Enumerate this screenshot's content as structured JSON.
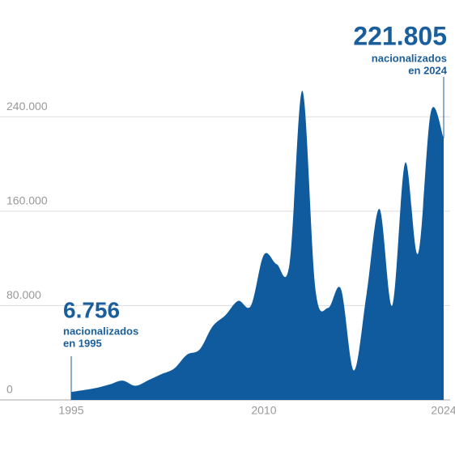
{
  "chart_data": {
    "type": "area",
    "color": "#0f5b9e",
    "x": [
      1995,
      1996,
      1997,
      1998,
      1999,
      2000,
      2001,
      2002,
      2003,
      2004,
      2005,
      2006,
      2007,
      2008,
      2009,
      2010,
      2011,
      2012,
      2013,
      2014,
      2015,
      2016,
      2017,
      2018,
      2019,
      2020,
      2021,
      2022,
      2023,
      2024
    ],
    "values": [
      6756,
      8400,
      10300,
      13200,
      16400,
      12000,
      16700,
      21800,
      26500,
      38300,
      42800,
      62300,
      71800,
      84000,
      80000,
      123000,
      115000,
      115500,
      262000,
      95000,
      78000,
      94000,
      25000,
      90000,
      162000,
      80000,
      201000,
      124000,
      244000,
      221805
    ],
    "xlim": [
      1995,
      2024
    ],
    "ylim": [
      0,
      280000
    ],
    "yticks": [
      0,
      {
        "value": 80000,
        "label": "80.000"
      },
      {
        "value": 160000,
        "label": "160.000"
      },
      {
        "value": 240000,
        "label": "240.000"
      }
    ],
    "xticks": [
      1995,
      2010,
      2024
    ],
    "grid": true,
    "annotations": [
      {
        "label": "6.756",
        "text": [
          "nacionalizados",
          "en 1995"
        ]
      },
      {
        "label": "221.805",
        "text": [
          "nacionalizados",
          "en 2024"
        ]
      }
    ]
  }
}
